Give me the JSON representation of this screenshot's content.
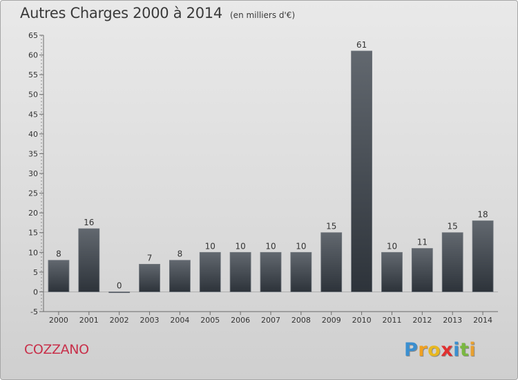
{
  "chart_data": {
    "type": "bar",
    "title": "Autres Charges 2000 à 2014",
    "subtitle": "(en milliers d'€)",
    "categories": [
      "2000",
      "2001",
      "2002",
      "2003",
      "2004",
      "2005",
      "2006",
      "2007",
      "2008",
      "2009",
      "2010",
      "2011",
      "2012",
      "2013",
      "2014"
    ],
    "values": [
      8,
      16,
      0,
      7,
      8,
      10,
      10,
      10,
      10,
      15,
      61,
      10,
      11,
      15,
      18
    ],
    "ylim": [
      -5,
      65
    ],
    "yticks": [
      -5,
      0,
      5,
      10,
      15,
      20,
      25,
      30,
      35,
      40,
      45,
      50,
      55,
      60,
      65
    ],
    "grid": false,
    "bar_color": "#3a4149"
  },
  "commune": "COZZANO",
  "logo": {
    "letters": [
      "P",
      "r",
      "o",
      "x",
      "i",
      "t",
      "i"
    ],
    "colors": [
      "#3a8fd0",
      "#f0a020",
      "#e8b820",
      "#e03030",
      "#3a8fd0",
      "#7ab840",
      "#e8a030"
    ]
  }
}
